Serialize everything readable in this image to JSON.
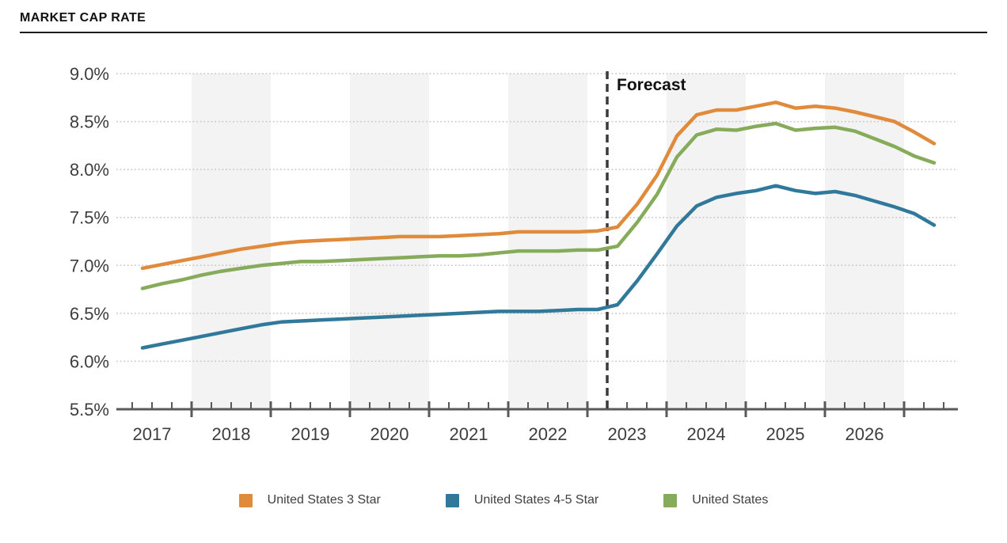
{
  "title": "MARKET CAP RATE",
  "colors": {
    "three_star": "#E08A3C",
    "four_five_star": "#31799B",
    "united_states": "#86AC5B",
    "band": "#F3F3F3",
    "grid": "#C6C6C6",
    "axis": "#58595B",
    "tick_text": "#3D3D3D",
    "forecast_line": "#3A3A3A",
    "forecast_text": "#111111"
  },
  "chart_data": {
    "type": "line",
    "title": "MARKET CAP RATE",
    "xlabel": "",
    "ylabel": "",
    "ylim": [
      5.5,
      9.0
    ],
    "grid": "dotted horizontal lines every 0.5%, alternating light-gray vertical year bands",
    "legend_position": "bottom-center",
    "y_tick_labels": [
      "5.5%",
      "6.0%",
      "6.5%",
      "7.0%",
      "7.5%",
      "8.0%",
      "8.5%",
      "9.0%"
    ],
    "y_tick_values": [
      5.5,
      6.0,
      6.5,
      7.0,
      7.5,
      8.0,
      8.5,
      9.0
    ],
    "x_year_labels": [
      "2017",
      "2018",
      "2019",
      "2020",
      "2021",
      "2022",
      "2023",
      "2024",
      "2025",
      "2026"
    ],
    "annotation": "Forecast",
    "forecast_start_category": "2023 Q1",
    "categories": [
      "2017 Q1",
      "2017 Q2",
      "2017 Q3",
      "2017 Q4",
      "2018 Q1",
      "2018 Q2",
      "2018 Q3",
      "2018 Q4",
      "2019 Q1",
      "2019 Q2",
      "2019 Q3",
      "2019 Q4",
      "2020 Q1",
      "2020 Q2",
      "2020 Q3",
      "2020 Q4",
      "2021 Q1",
      "2021 Q2",
      "2021 Q3",
      "2021 Q4",
      "2022 Q1",
      "2022 Q2",
      "2022 Q3",
      "2022 Q4",
      "2023 Q1",
      "2023 Q2",
      "2023 Q3",
      "2023 Q4",
      "2024 Q1",
      "2024 Q2",
      "2024 Q3",
      "2024 Q4",
      "2025 Q1",
      "2025 Q2",
      "2025 Q3",
      "2025 Q4",
      "2026 Q1",
      "2026 Q2",
      "2026 Q3",
      "2026 Q4",
      "2027 Q1"
    ],
    "series": [
      {
        "name": "United States 3 Star",
        "color": "#E08A3C",
        "values": [
          6.97,
          7.01,
          7.05,
          7.09,
          7.13,
          7.17,
          7.2,
          7.23,
          7.25,
          7.26,
          7.27,
          7.28,
          7.29,
          7.3,
          7.3,
          7.3,
          7.31,
          7.32,
          7.33,
          7.35,
          7.35,
          7.35,
          7.35,
          7.36,
          7.4,
          7.64,
          7.94,
          8.35,
          8.57,
          8.62,
          8.62,
          8.66,
          8.7,
          8.64,
          8.66,
          8.64,
          8.6,
          8.55,
          8.5,
          8.39,
          8.27
        ]
      },
      {
        "name": "United States 4-5 Star",
        "color": "#31799B",
        "values": [
          6.14,
          6.18,
          6.22,
          6.26,
          6.3,
          6.34,
          6.38,
          6.41,
          6.42,
          6.43,
          6.44,
          6.45,
          6.46,
          6.47,
          6.48,
          6.49,
          6.5,
          6.51,
          6.52,
          6.52,
          6.52,
          6.53,
          6.54,
          6.54,
          6.59,
          6.84,
          7.12,
          7.41,
          7.62,
          7.71,
          7.75,
          7.78,
          7.83,
          7.78,
          7.75,
          7.77,
          7.73,
          7.67,
          7.61,
          7.54,
          7.42
        ]
      },
      {
        "name": "United States",
        "color": "#86AC5B",
        "values": [
          6.76,
          6.81,
          6.85,
          6.9,
          6.94,
          6.97,
          7.0,
          7.02,
          7.04,
          7.04,
          7.05,
          7.06,
          7.07,
          7.08,
          7.09,
          7.1,
          7.1,
          7.11,
          7.13,
          7.15,
          7.15,
          7.15,
          7.16,
          7.16,
          7.2,
          7.45,
          7.74,
          8.13,
          8.36,
          8.42,
          8.41,
          8.45,
          8.48,
          8.41,
          8.43,
          8.44,
          8.4,
          8.32,
          8.24,
          8.14,
          8.07
        ]
      }
    ]
  },
  "legend": {
    "items": [
      {
        "label": "United States 3 Star",
        "color": "#E08A3C"
      },
      {
        "label": "United States 4-5 Star",
        "color": "#31799B"
      },
      {
        "label": "United States",
        "color": "#86AC5B"
      }
    ]
  }
}
